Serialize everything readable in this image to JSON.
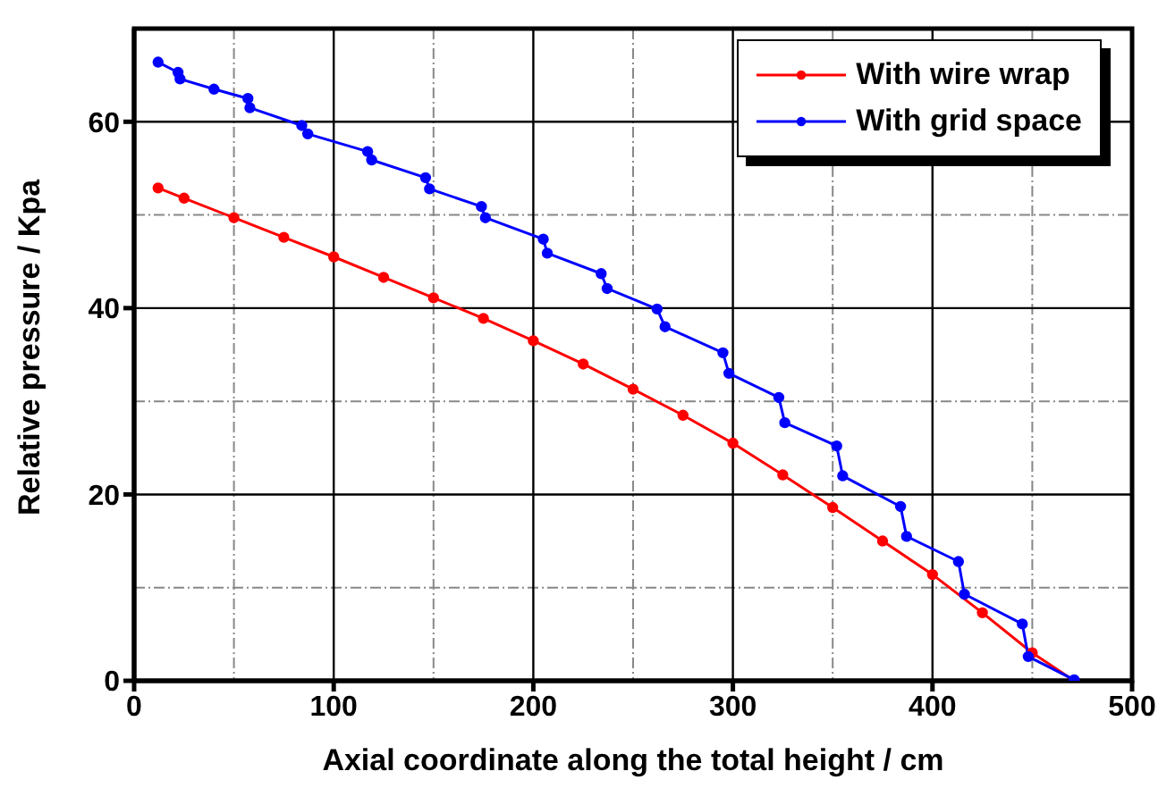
{
  "chart_data": {
    "type": "line",
    "xlabel": "Axial coordinate along the total height / cm",
    "ylabel": "Relative pressure / Kpa",
    "xlim": [
      0,
      500
    ],
    "xticks": [
      0,
      100,
      200,
      300,
      400,
      500
    ],
    "ylim": [
      0,
      70
    ],
    "yticks": [
      0,
      20,
      40,
      60
    ],
    "grid": true,
    "legend": "top right",
    "marker": "circle",
    "line_style": "solid",
    "series": [
      {
        "name": "With wire wrap",
        "color": "#ff0000",
        "x": [
          12,
          25,
          50,
          75,
          100,
          125,
          150,
          175,
          200,
          225,
          250,
          275,
          300,
          325,
          350,
          375,
          400,
          425,
          450,
          471
        ],
        "values": [
          52.9,
          51.8,
          49.7,
          47.6,
          45.5,
          43.3,
          41.1,
          38.9,
          36.5,
          34.0,
          31.3,
          28.5,
          25.5,
          22.1,
          18.6,
          15.0,
          11.4,
          7.3,
          3.0,
          0
        ]
      },
      {
        "name": "With grid space",
        "color": "#0000ff",
        "x": [
          12,
          22,
          23,
          40,
          57,
          58,
          84,
          87,
          117,
          119,
          146,
          148,
          174,
          176,
          205,
          207,
          234,
          237,
          262,
          266,
          295,
          298,
          323,
          326,
          352,
          355,
          384,
          387,
          413,
          416,
          445,
          448,
          471
        ],
        "values": [
          66.4,
          65.3,
          64.6,
          63.5,
          62.5,
          61.5,
          59.6,
          58.7,
          56.8,
          55.9,
          54.0,
          52.8,
          50.9,
          49.7,
          47.4,
          45.9,
          43.7,
          42.1,
          39.9,
          38.0,
          35.2,
          33.0,
          30.4,
          27.7,
          25.2,
          22.0,
          18.7,
          15.5,
          12.8,
          9.3,
          6.1,
          2.6,
          0.1
        ]
      }
    ]
  }
}
